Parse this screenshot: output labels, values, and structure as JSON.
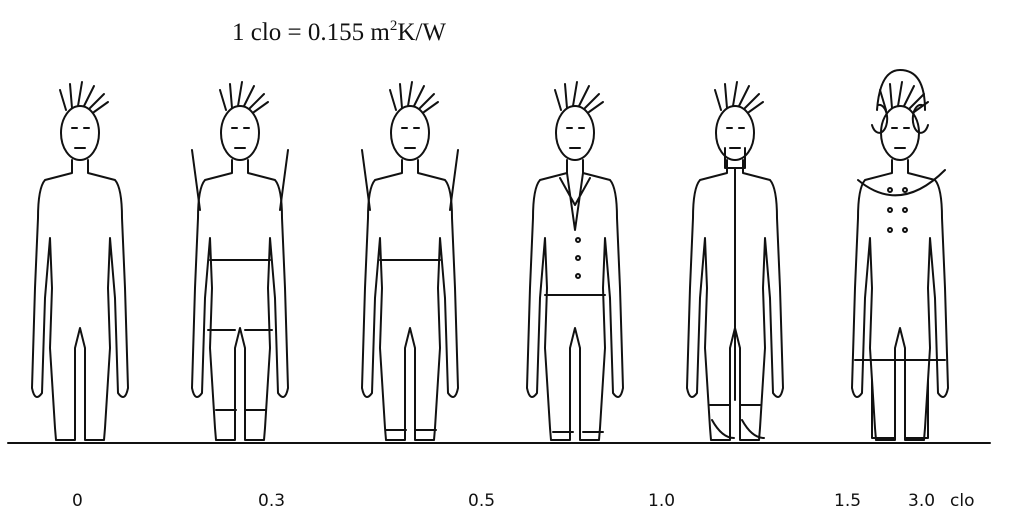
{
  "title": {
    "text": "1 clo = 0.155 m",
    "sup": "2",
    "rest": "K/W"
  },
  "labels": [
    "0",
    "0.3",
    "0.5",
    "1.0",
    "1.5",
    "3.0"
  ],
  "unit": "clo"
}
